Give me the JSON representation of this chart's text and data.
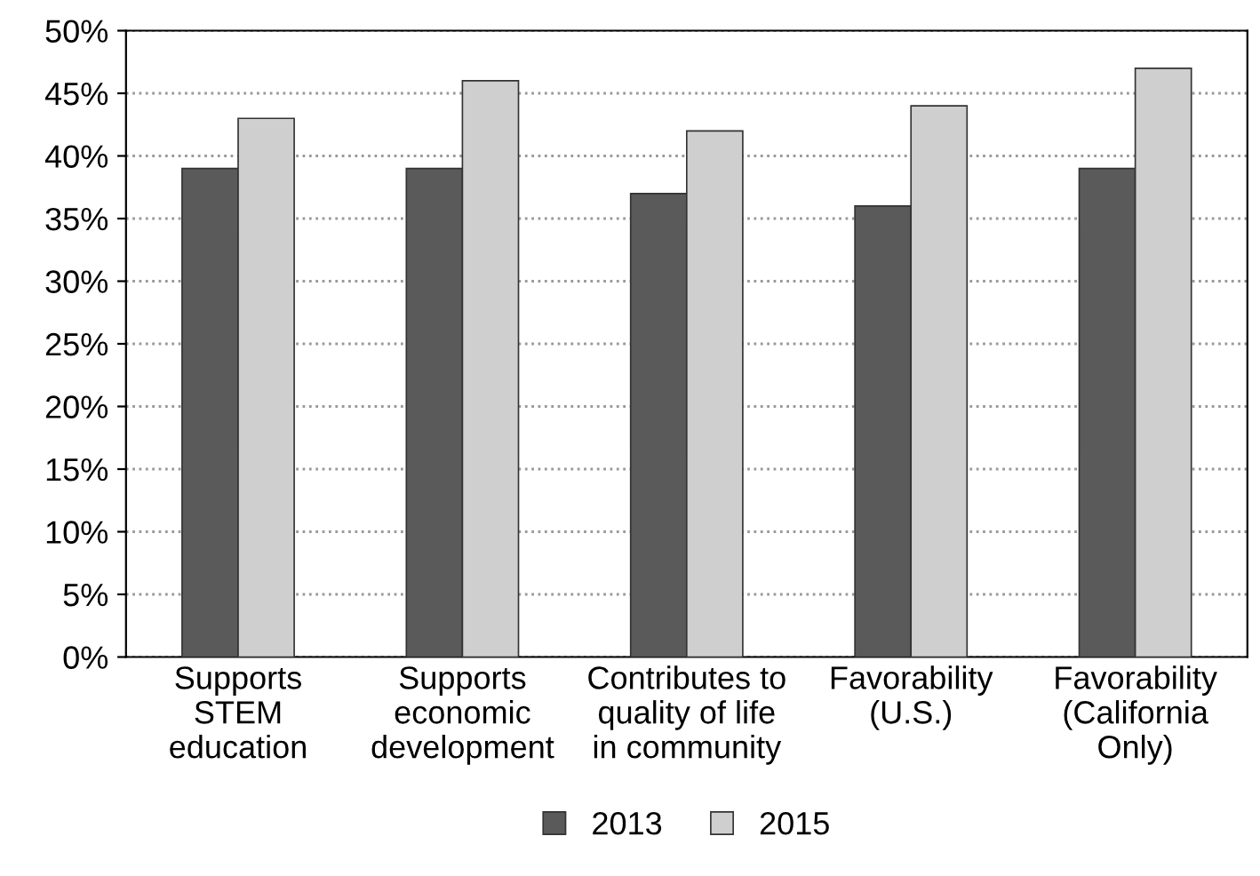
{
  "chart_data": {
    "type": "bar",
    "categories": [
      "Supports\nSTEM\neducation",
      "Supports\neconomic\ndevelopment",
      "Contributes to\nquality of life\nin community",
      "Favorability\n(U.S.)",
      "Favorability\n(California\nOnly)"
    ],
    "series": [
      {
        "name": "2013",
        "color": "#5a5a5a",
        "values": [
          39,
          39,
          37,
          36,
          39
        ]
      },
      {
        "name": "2015",
        "color": "#cfcfcf",
        "values": [
          43,
          46,
          42,
          44,
          47
        ]
      }
    ],
    "ylim": [
      0,
      50
    ],
    "yticks": [
      {
        "value": 0,
        "label": "0%"
      },
      {
        "value": 5,
        "label": "5%"
      },
      {
        "value": 10,
        "label": "10%"
      },
      {
        "value": 15,
        "label": "15%"
      },
      {
        "value": 20,
        "label": "20%"
      },
      {
        "value": 25,
        "label": "25%"
      },
      {
        "value": 30,
        "label": "30%"
      },
      {
        "value": 35,
        "label": "35%"
      },
      {
        "value": 40,
        "label": "40%"
      },
      {
        "value": 45,
        "label": "45%"
      },
      {
        "value": 50,
        "label": "50%"
      }
    ],
    "grid": "y",
    "legend": "bottom"
  }
}
